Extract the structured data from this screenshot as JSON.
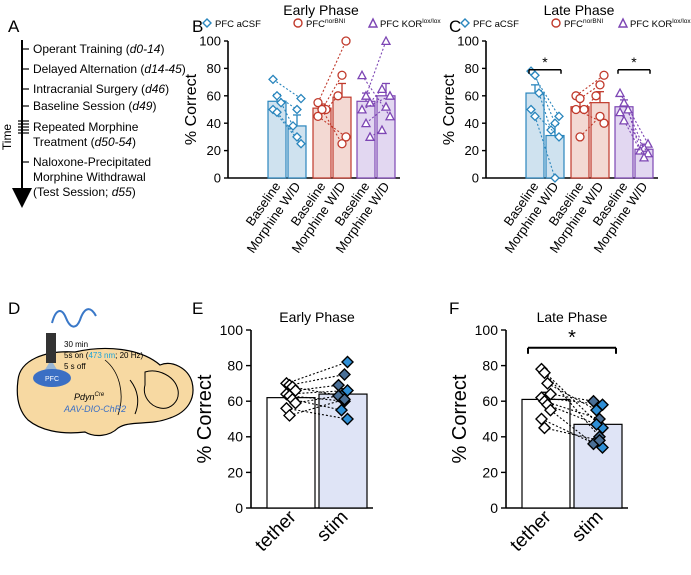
{
  "colors": {
    "pfc": "#2a86bd",
    "pfc_fill": "#cfe2ef",
    "nor": "#c0392b",
    "nor_fill": "#f3d9d3",
    "kor": "#7d46b4",
    "kor_fill": "#e2d7f1",
    "opto_bar": "#dfe4f6",
    "diamond_dark": "#4a6f96",
    "diamond_light": "#2f8fd6",
    "nm": "#1aa3d8"
  },
  "panel_labels": {
    "a": "A",
    "b": "B",
    "c": "C",
    "d": "D",
    "e": "E",
    "f": "F"
  },
  "timeline": {
    "axis_label": "Time",
    "items": [
      {
        "text": "Operant Training",
        "days": "d0-14"
      },
      {
        "text": "Delayed Alternation",
        "days": "d14-45"
      },
      {
        "text": "Intracranial Surgery",
        "days": "d46"
      },
      {
        "text": "Baseline Session",
        "days": "d49"
      },
      {
        "text": "Repeated Morphine",
        "text2": "Treatment",
        "days": "d50-54"
      },
      {
        "text": "Naloxone-Precipitated",
        "text2": "Morphine Withdrawal",
        "text3": "(Test Session;",
        "days": "d55"
      }
    ]
  },
  "legend": [
    {
      "name": "PFC aCSF",
      "marker": "diamond",
      "color": "pfc"
    },
    {
      "name": "PFC",
      "sup": "norBNI",
      "marker": "circle",
      "color": "nor"
    },
    {
      "name": "PFC KOR",
      "sup": "lox/lox",
      "marker": "triangle",
      "color": "kor"
    }
  ],
  "schematic": {
    "protocol": [
      "30 min",
      "5s on (",
      "473 nm",
      "; 20 Hz)",
      "5 s off"
    ],
    "region": "PFC",
    "mouse_line": "Pdyn",
    "mouse_sup": "Cre",
    "virus": "AAV-DIO-ChR2"
  },
  "chart_data": [
    {
      "id": "B",
      "type": "bar",
      "title": "Early Phase",
      "ylabel": "% Correct",
      "ylim": [
        0,
        100
      ],
      "yticks": [
        0,
        20,
        40,
        60,
        80,
        100
      ],
      "categories": [
        "Baseline",
        "Morphine W/D",
        "Baseline",
        "Morphine W/D",
        "Baseline",
        "Morphine W/D"
      ],
      "groups": [
        {
          "name": "PFC aCSF",
          "means": [
            56,
            38
          ],
          "errors": [
            5,
            8
          ],
          "points": [
            [
              72,
              58
            ],
            [
              60,
              50
            ],
            [
              55,
              38
            ],
            [
              50,
              25
            ],
            [
              48,
              30
            ]
          ]
        },
        {
          "name": "PFC norBNI",
          "means": [
            51,
            59
          ],
          "errors": [
            3,
            10
          ],
          "points": [
            [
              55,
              100
            ],
            [
              50,
              75
            ],
            [
              50,
              60
            ],
            [
              45,
              30
            ],
            [
              50,
              25
            ]
          ]
        },
        {
          "name": "PFC KOR lox/lox",
          "means": [
            56,
            60
          ],
          "errors": [
            6,
            9
          ],
          "points": [
            [
              75,
              45
            ],
            [
              60,
              100
            ],
            [
              55,
              65
            ],
            [
              50,
              60
            ],
            [
              40,
              52
            ],
            [
              30,
              35
            ]
          ]
        }
      ],
      "significance": []
    },
    {
      "id": "C",
      "type": "bar",
      "title": "Late Phase",
      "ylabel": "% Correct",
      "ylim": [
        0,
        100
      ],
      "yticks": [
        0,
        20,
        40,
        60,
        80,
        100
      ],
      "categories": [
        "Baseline",
        "Morphine W/D",
        "Baseline",
        "Morphine W/D",
        "Baseline",
        "Morphine W/D"
      ],
      "groups": [
        {
          "name": "PFC aCSF",
          "means": [
            62,
            31
          ],
          "errors": [
            6,
            8
          ],
          "points": [
            [
              78,
              45
            ],
            [
              75,
              40
            ],
            [
              62,
              35
            ],
            [
              50,
              30
            ],
            [
              45,
              0
            ]
          ]
        },
        {
          "name": "PFC norBNI",
          "means": [
            52,
            55
          ],
          "errors": [
            6,
            8
          ],
          "points": [
            [
              60,
              75
            ],
            [
              58,
              68
            ],
            [
              50,
              60
            ],
            [
              50,
              40
            ],
            [
              30,
              45
            ]
          ]
        },
        {
          "name": "PFC KOR lox/lox",
          "means": [
            52,
            21
          ],
          "errors": [
            5,
            3
          ],
          "points": [
            [
              62,
              25
            ],
            [
              55,
              22
            ],
            [
              50,
              20
            ],
            [
              48,
              18
            ],
            [
              42,
              15
            ]
          ]
        }
      ],
      "significance": [
        {
          "pair": [
            0,
            1
          ],
          "label": "*"
        },
        {
          "pair": [
            4,
            5
          ],
          "label": "*"
        }
      ]
    },
    {
      "id": "E",
      "type": "bar",
      "title": "Early Phase",
      "ylabel": "% Correct",
      "ylim": [
        0,
        100
      ],
      "yticks": [
        0,
        20,
        40,
        60,
        80,
        100
      ],
      "categories": [
        "tether",
        "stim"
      ],
      "means": [
        62,
        64
      ],
      "errors": [
        3,
        3
      ],
      "pairs": [
        [
          70,
          82
        ],
        [
          69,
          75
        ],
        [
          68,
          63
        ],
        [
          66,
          69
        ],
        [
          64,
          66
        ],
        [
          63,
          60
        ],
        [
          61,
          55
        ],
        [
          59,
          63
        ],
        [
          56,
          50
        ],
        [
          52,
          61
        ]
      ],
      "significance": []
    },
    {
      "id": "F",
      "type": "bar",
      "title": "Late Phase",
      "ylabel": "% Correct",
      "ylim": [
        0,
        100
      ],
      "yticks": [
        0,
        20,
        40,
        60,
        80,
        100
      ],
      "categories": [
        "tether",
        "stim"
      ],
      "means": [
        61,
        47
      ],
      "errors": [
        4,
        3
      ],
      "pairs": [
        [
          78,
          45
        ],
        [
          76,
          40
        ],
        [
          70,
          55
        ],
        [
          64,
          60
        ],
        [
          62,
          58
        ],
        [
          60,
          50
        ],
        [
          58,
          47
        ],
        [
          55,
          36
        ],
        [
          50,
          34
        ],
        [
          45,
          38
        ]
      ],
      "significance": [
        {
          "pair": [
            0,
            1
          ],
          "label": "*"
        }
      ]
    }
  ]
}
